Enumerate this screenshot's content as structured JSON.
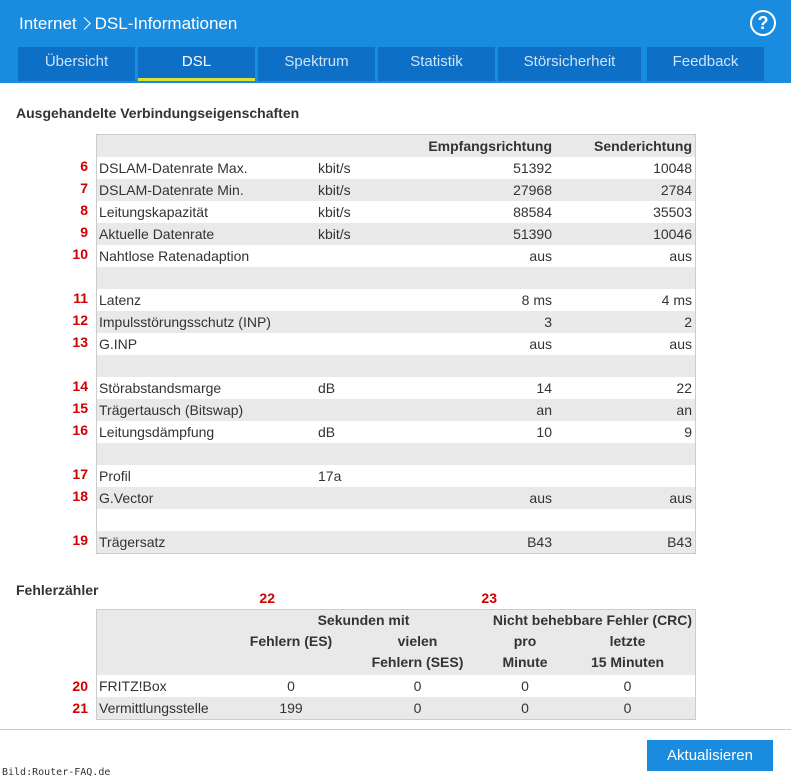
{
  "header": {
    "breadcrumb": "Internet",
    "title": "DSL-Informationen",
    "help": "?"
  },
  "tabs": [
    "Übersicht",
    "DSL",
    "Spektrum",
    "Statistik",
    "Störsicherheit",
    "Feedback"
  ],
  "properties": {
    "heading": "Ausgehandelte Verbindungseigenschaften",
    "columns": {
      "rx": "Empfangsrichtung",
      "tx": "Senderichtung"
    },
    "groups": [
      [
        {
          "marker": "6",
          "label": "DSLAM-Datenrate Max.",
          "unit": "kbit/s",
          "rx": "51392",
          "tx": "10048"
        },
        {
          "marker": "7",
          "label": "DSLAM-Datenrate Min.",
          "unit": "kbit/s",
          "rx": "27968",
          "tx": "2784"
        },
        {
          "marker": "8",
          "label": "Leitungskapazität",
          "unit": "kbit/s",
          "rx": "88584",
          "tx": "35503"
        },
        {
          "marker": "9",
          "label": "Aktuelle Datenrate",
          "unit": "kbit/s",
          "rx": "51390",
          "tx": "10046"
        },
        {
          "marker": "10",
          "label": "Nahtlose Ratenadaption",
          "rx": "aus",
          "tx": "aus"
        }
      ],
      [
        {
          "marker": "11",
          "label": "Latenz",
          "rx": "8 ms",
          "tx": "4 ms"
        },
        {
          "marker": "12",
          "label": "Impulsstörungsschutz (INP)",
          "rx": "3",
          "tx": "2"
        },
        {
          "marker": "13",
          "label": "G.INP",
          "rx": "aus",
          "tx": "aus"
        }
      ],
      [
        {
          "marker": "14",
          "label": "Störabstandsmarge",
          "unit": "dB",
          "rx": "14",
          "tx": "22"
        },
        {
          "marker": "15",
          "label": "Trägertausch (Bitswap)",
          "rx": "an",
          "tx": "an"
        },
        {
          "marker": "16",
          "label": "Leitungsdämpfung",
          "unit": "dB",
          "rx": "10",
          "tx": "9"
        }
      ],
      [
        {
          "marker": "17",
          "label": "Profil",
          "unit": "17a"
        },
        {
          "marker": "18",
          "label": "G.Vector",
          "rx": "aus",
          "tx": "aus"
        }
      ],
      [
        {
          "marker": "19",
          "label": "Trägersatz",
          "rx": "B43",
          "tx": "B43"
        }
      ]
    ]
  },
  "errors": {
    "heading": "Fehlerzähler",
    "groups": [
      {
        "marker": "22",
        "label": "Sekunden mit",
        "columns": [
          "Fehlern (ES)",
          "vielen\nFehlern (SES)"
        ]
      },
      {
        "marker": "23",
        "label": "Nicht behebbare Fehler (CRC)",
        "columns": [
          "pro\nMinute",
          "letzte\n15 Minuten"
        ]
      }
    ],
    "rows": [
      {
        "marker": "20",
        "label": "FRITZ!Box",
        "values": [
          "0",
          "0",
          "0",
          "0"
        ]
      },
      {
        "marker": "21",
        "label": "Vermittlungsstelle",
        "values": [
          "199",
          "0",
          "0",
          "0"
        ]
      }
    ]
  },
  "button": "Aktualisieren",
  "watermark": "Bild:Router-FAQ.de"
}
